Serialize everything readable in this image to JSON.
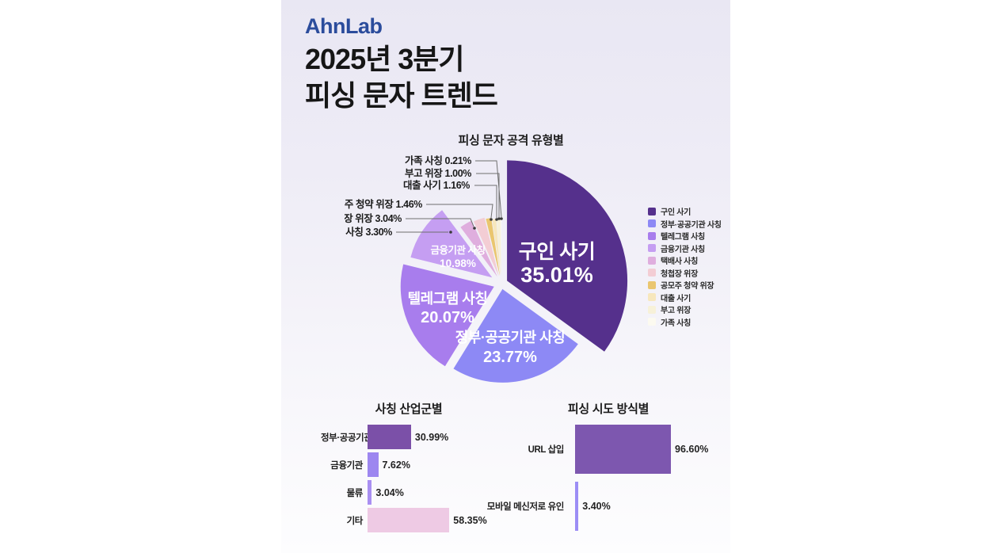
{
  "brand": {
    "logo": "AhnLab"
  },
  "header": {
    "title_line1": "2025년 3분기",
    "title_line2": "피싱 문자 트렌드"
  },
  "sections": {
    "pie_title": "피싱 문자 공격 유형별",
    "industry_title": "사칭 산업군별",
    "method_title": "피싱 시도 방식별"
  },
  "chart_data": [
    {
      "type": "pie",
      "title": "피싱 문자 공격 유형별",
      "unit": "%",
      "start_angle_deg": 0,
      "direction": "clockwise",
      "legend_position": "right",
      "items": [
        {
          "label": "구인 사기",
          "value": 35.01,
          "color": "#55308c"
        },
        {
          "label": "정부·공공기관 사칭",
          "value": 23.77,
          "color": "#8d89f5"
        },
        {
          "label": "텔레그램 사칭",
          "value": 20.07,
          "color": "#a87ded"
        },
        {
          "label": "금융기관 사칭",
          "value": 10.98,
          "color": "#c59ef2"
        },
        {
          "label": "택배사 사칭",
          "value": 3.3,
          "color": "#dfaede"
        },
        {
          "label": "청첩장 위장",
          "value": 3.04,
          "color": "#f3cdd4"
        },
        {
          "label": "공모주 청약 위장",
          "value": 1.46,
          "color": "#eac66f"
        },
        {
          "label": "대출 사기",
          "value": 1.16,
          "color": "#f7e7bd"
        },
        {
          "label": "부고 위장",
          "value": 1.0,
          "color": "#f7f1d9"
        },
        {
          "label": "가족 사칭",
          "value": 0.21,
          "color": "#fcfaf0"
        }
      ]
    },
    {
      "type": "bar",
      "title": "사칭 산업군별",
      "orientation": "horizontal",
      "unit": "%",
      "categories": [
        "정부·공공기관",
        "금융기관",
        "물류",
        "기타"
      ],
      "values": [
        30.99,
        7.62,
        3.04,
        58.35
      ],
      "colors": [
        "#7b50a8",
        "#9d87f0",
        "#a98ff2",
        "#eecae4"
      ]
    },
    {
      "type": "bar",
      "title": "피싱 시도 방식별",
      "orientation": "horizontal",
      "unit": "%",
      "categories": [
        "URL 삽입",
        "모바일 메신저로 유인"
      ],
      "values": [
        96.6,
        3.4
      ],
      "colors": [
        "#7d57af",
        "#9c8df5"
      ]
    }
  ]
}
